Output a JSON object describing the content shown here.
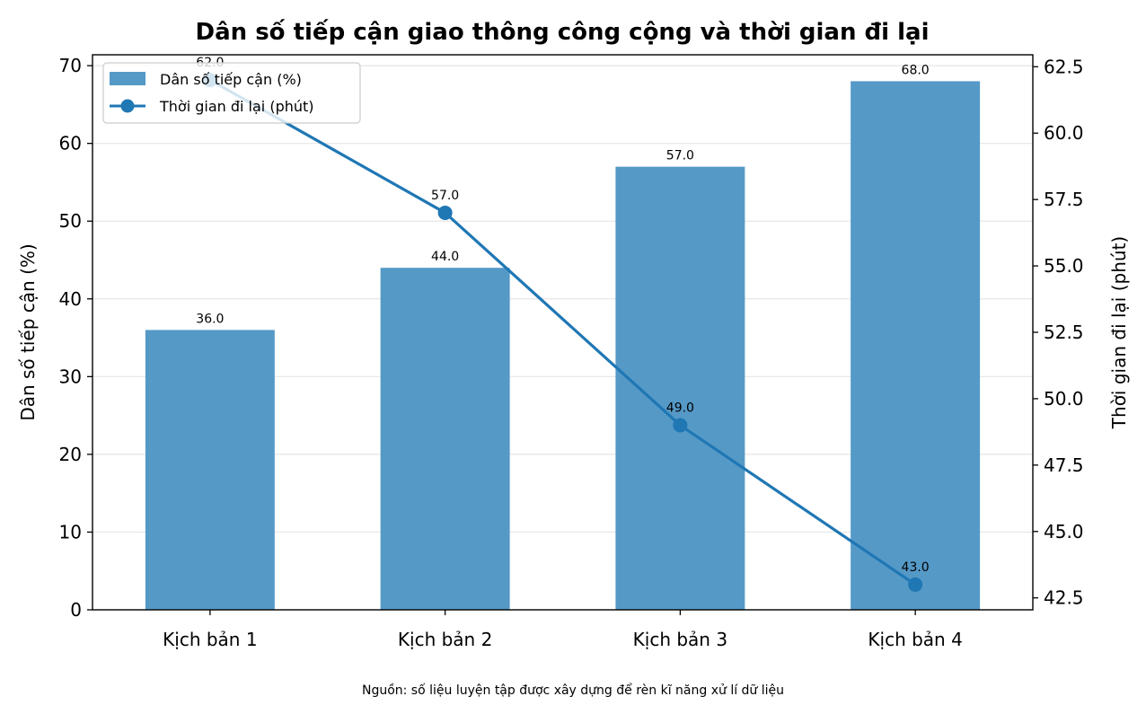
{
  "chart_data": {
    "type": "bar+line",
    "title": "Dân số tiếp cận giao thông công cộng và thời gian đi lại",
    "categories": [
      "Kịch bản 1",
      "Kịch bản 2",
      "Kịch bản 3",
      "Kịch bản 4"
    ],
    "series": [
      {
        "name": "Dân số tiếp cận (%)",
        "type": "bar",
        "axis": "left",
        "values": [
          36.0,
          44.0,
          57.0,
          68.0
        ],
        "labels": [
          "36.0",
          "44.0",
          "57.0",
          "68.0"
        ],
        "color": "#5599c7"
      },
      {
        "name": "Thời gian đi lại (phút)",
        "type": "line",
        "axis": "right",
        "values": [
          62.0,
          57.0,
          49.0,
          43.0
        ],
        "labels": [
          "62.0",
          "57.0",
          "49.0",
          "43.0"
        ],
        "color": "#1f77b4"
      }
    ],
    "ylabel": "Dân số tiếp cận (%)",
    "y2label": "Thời gian đi lại (phút)",
    "ylim": [
      0,
      71.4
    ],
    "y2lim": [
      42.05,
      62.95
    ],
    "yticks": [
      "0",
      "10",
      "20",
      "30",
      "40",
      "50",
      "60",
      "70"
    ],
    "y2ticks": [
      "42.5",
      "45.0",
      "47.5",
      "50.0",
      "52.5",
      "55.0",
      "57.5",
      "60.0",
      "62.5"
    ],
    "grid": "horizontal",
    "legend_position": "top-left",
    "source_note": "Nguồn: số liệu luyện tập được xây dựng để rèn kĩ năng xử lí dữ liệu"
  }
}
